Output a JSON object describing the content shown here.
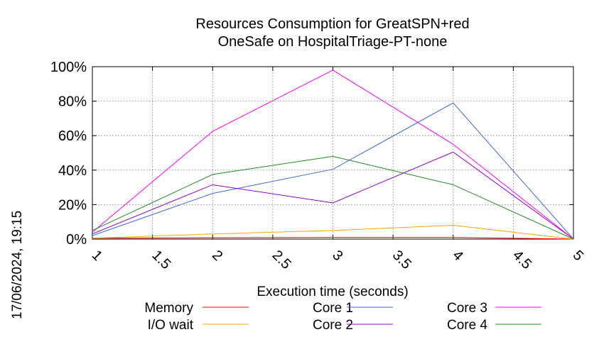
{
  "chart_data": {
    "type": "line",
    "title": "Resources Consumption for GreatSPN+red",
    "subtitle": "OneSafe on HospitalTriage-PT-none",
    "xlabel": "Execution time (seconds)",
    "ylabel": "",
    "xlim": [
      1,
      5
    ],
    "ylim": [
      0,
      100
    ],
    "grid": true,
    "legend_position": "bottom",
    "x_ticks": [
      "1",
      "1.5",
      "2",
      "2.5",
      "3",
      "3.5",
      "4",
      "4.5",
      "5"
    ],
    "y_ticks": [
      "0%",
      "20%",
      "40%",
      "60%",
      "80%",
      "100%"
    ],
    "x": [
      1,
      2,
      3,
      4,
      5
    ],
    "series": [
      {
        "name": "Memory",
        "color": "#ff0000",
        "values": [
          0.5,
          0.8,
          1.0,
          1.0,
          0
        ]
      },
      {
        "name": "I/O wait",
        "color": "#ffa500",
        "values": [
          0.5,
          3,
          5,
          8,
          0
        ]
      },
      {
        "name": "Core 1",
        "color": "#4169e1",
        "values": [
          2,
          26.5,
          40.5,
          79,
          0
        ]
      },
      {
        "name": "Core 2",
        "color": "#9400d3",
        "values": [
          3,
          31.5,
          21,
          50.5,
          0
        ]
      },
      {
        "name": "Core 3",
        "color": "#ff00ff",
        "values": [
          4,
          62.5,
          98,
          55,
          0
        ]
      },
      {
        "name": "Core 4",
        "color": "#228b22",
        "values": [
          5,
          37.5,
          48,
          31.5,
          0
        ]
      }
    ],
    "timestamp": "17/06/2024, 19:15"
  }
}
